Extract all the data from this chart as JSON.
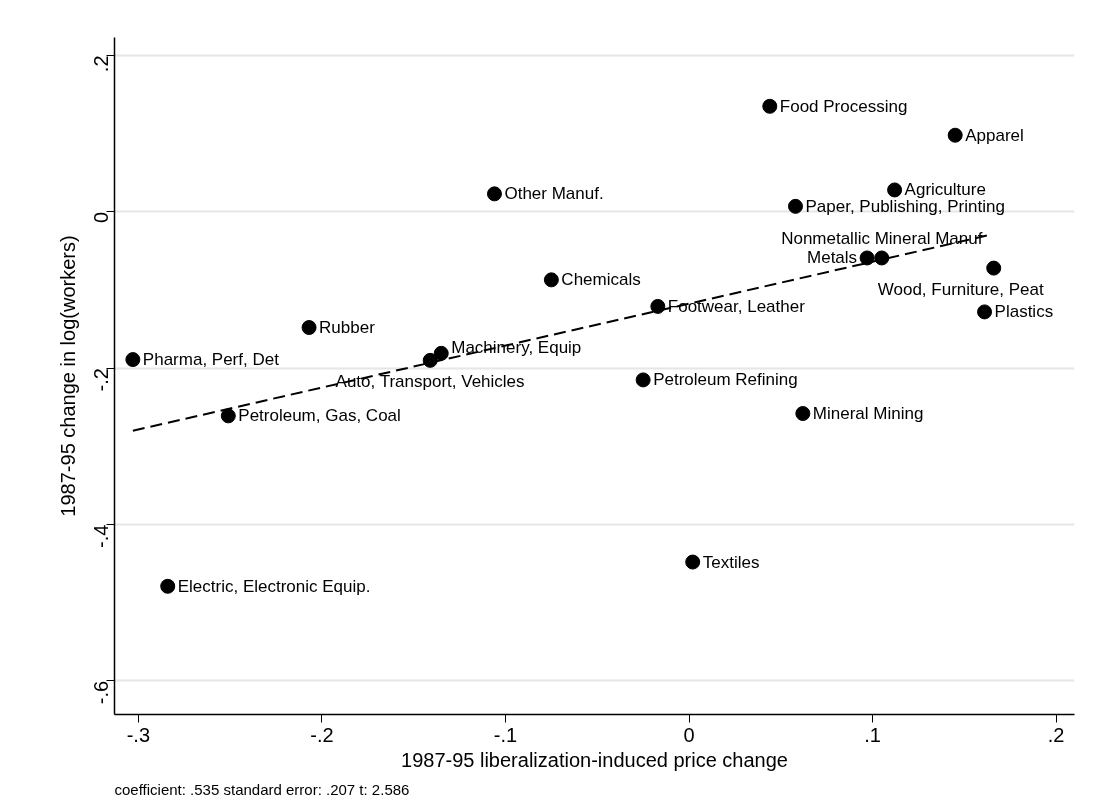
{
  "chart_data": {
    "type": "scatter",
    "xlabel": "1987-95 liberalization-induced price change",
    "ylabel": "1987-95 change in log(workers)",
    "annotations": [
      "coefficient: .535   standard error: .207   t: 2.586"
    ],
    "xlim": [
      -0.313,
      0.21
    ],
    "ylim": [
      -0.643,
      0.223
    ],
    "xticks": [
      {
        "value": -0.3,
        "label": "-.3"
      },
      {
        "value": -0.2,
        "label": "-.2"
      },
      {
        "value": -0.1,
        "label": "-.1"
      },
      0,
      {
        "value": 0.1,
        "label": ".1"
      },
      {
        "value": 0.2,
        "label": ".2"
      }
    ],
    "yticks": [
      {
        "value": -0.6,
        "label": "-.6"
      },
      {
        "value": -0.4,
        "label": "-.4"
      },
      {
        "value": -0.2,
        "label": "-.2"
      },
      0,
      {
        "value": 0.2,
        "label": ".2"
      }
    ],
    "grid": "y",
    "series": [
      {
        "color": "#000000",
        "marker": "circle",
        "x": [
          0.044,
          0.145,
          -0.106,
          0.112,
          0.058,
          0.105,
          0.097,
          0.166,
          0.161,
          -0.075,
          -0.017,
          -0.207,
          -0.303,
          -0.135,
          -0.141,
          -0.025,
          -0.251,
          0.062,
          0.002,
          -0.284
        ],
        "values": [
          0.135,
          0.098,
          0.023,
          0.028,
          0.007,
          -0.059,
          -0.059,
          -0.072,
          -0.128,
          -0.087,
          -0.121,
          -0.148,
          -0.189,
          -0.181,
          -0.19,
          -0.215,
          -0.261,
          -0.258,
          -0.448,
          -0.479
        ],
        "value_labels": [
          "Food Processing",
          "Apparel",
          "Other Manuf.",
          "Agriculture",
          "Paper, Publishing, Printing",
          "Nonmetallic Mineral Manuf",
          "Metals",
          "Wood, Furniture, Peat",
          "Plastics",
          "Chemicals",
          "Footwear, Leather",
          "Rubber",
          "Pharma, Perf, Det",
          "Machinery, Equip",
          "Auto, Transport, Vehicles",
          "Petroleum Refining",
          "Petroleum, Gas, Coal",
          "Mineral Mining",
          "Textiles",
          "Electric, Electronic Equip."
        ]
      },
      {
        "type": "line",
        "color": "#000000",
        "line_style": "dashed",
        "marker": "none",
        "x": [
          -0.303,
          0.163
        ],
        "values": [
          -0.28,
          -0.03
        ]
      }
    ]
  }
}
